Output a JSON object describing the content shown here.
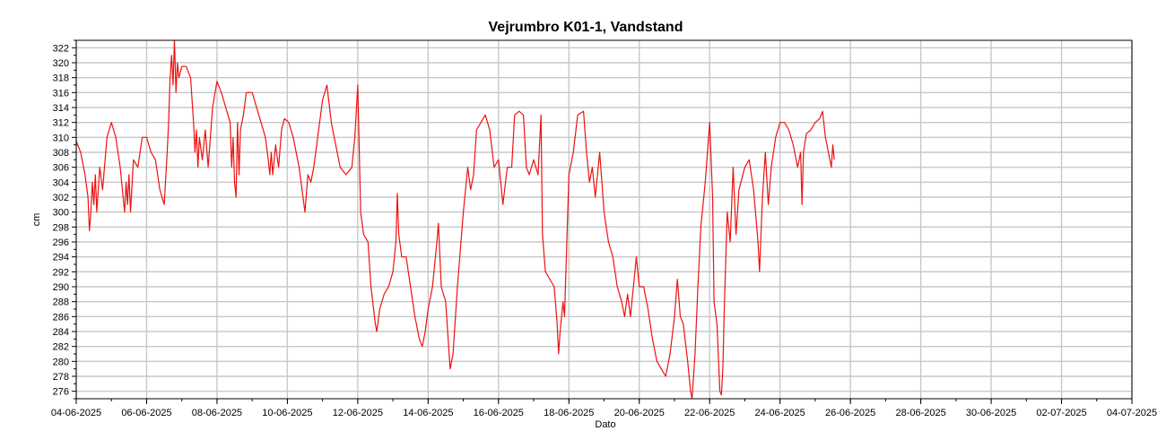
{
  "chart_data": {
    "type": "line",
    "title": "Vejrumbro K01-1, Vandstand",
    "xlabel": "Dato",
    "ylabel": "cm",
    "ylim": [
      275,
      323
    ],
    "xlim": [
      "2025-06-04",
      "2025-07-04"
    ],
    "grid": true,
    "x_ticks": [
      "04-06-2025",
      "06-06-2025",
      "08-06-2025",
      "10-06-2025",
      "12-06-2025",
      "14-06-2025",
      "16-06-2025",
      "18-06-2025",
      "20-06-2025",
      "22-06-2025",
      "24-06-2025",
      "26-06-2025",
      "28-06-2025",
      "30-06-2025",
      "02-07-2025",
      "04-07-2025"
    ],
    "y_ticks": [
      276,
      278,
      280,
      282,
      284,
      286,
      288,
      290,
      292,
      294,
      296,
      298,
      300,
      302,
      304,
      306,
      308,
      310,
      312,
      314,
      316,
      318,
      320,
      322
    ],
    "series": [
      {
        "color": "#ee1111",
        "points": [
          [
            "2025-06-04T00:00",
            309.5
          ],
          [
            "2025-06-04T03:00",
            308
          ],
          [
            "2025-06-04T06:00",
            305
          ],
          [
            "2025-06-04T08:00",
            302
          ],
          [
            "2025-06-04T09:00",
            297.5
          ],
          [
            "2025-06-04T10:00",
            300
          ],
          [
            "2025-06-04T11:00",
            304
          ],
          [
            "2025-06-04T12:00",
            301
          ],
          [
            "2025-06-04T13:00",
            305
          ],
          [
            "2025-06-04T14:00",
            300
          ],
          [
            "2025-06-04T16:00",
            306
          ],
          [
            "2025-06-04T18:00",
            303
          ],
          [
            "2025-06-04T21:00",
            310
          ],
          [
            "2025-06-05T00:00",
            312
          ],
          [
            "2025-06-05T03:00",
            310
          ],
          [
            "2025-06-05T06:00",
            306
          ],
          [
            "2025-06-05T08:00",
            302
          ],
          [
            "2025-06-05T09:00",
            300
          ],
          [
            "2025-06-05T10:00",
            304
          ],
          [
            "2025-06-05T11:00",
            301
          ],
          [
            "2025-06-05T12:00",
            305
          ],
          [
            "2025-06-05T13:00",
            300
          ],
          [
            "2025-06-05T15:00",
            307
          ],
          [
            "2025-06-05T18:00",
            306
          ],
          [
            "2025-06-05T21:00",
            310
          ],
          [
            "2025-06-06T00:00",
            310
          ],
          [
            "2025-06-06T03:00",
            308
          ],
          [
            "2025-06-06T06:00",
            307
          ],
          [
            "2025-06-06T09:00",
            303
          ],
          [
            "2025-06-06T12:00",
            301
          ],
          [
            "2025-06-06T14:00",
            308
          ],
          [
            "2025-06-06T15:00",
            312
          ],
          [
            "2025-06-06T16:00",
            318
          ],
          [
            "2025-06-06T17:00",
            321
          ],
          [
            "2025-06-06T18:00",
            317
          ],
          [
            "2025-06-06T19:00",
            323
          ],
          [
            "2025-06-06T20:00",
            316
          ],
          [
            "2025-06-06T21:00",
            320
          ],
          [
            "2025-06-06T22:00",
            318
          ],
          [
            "2025-06-07T00:00",
            319.5
          ],
          [
            "2025-06-07T03:00",
            319.5
          ],
          [
            "2025-06-07T06:00",
            318
          ],
          [
            "2025-06-07T08:00",
            312
          ],
          [
            "2025-06-07T09:00",
            308
          ],
          [
            "2025-06-07T10:00",
            311
          ],
          [
            "2025-06-07T11:00",
            306
          ],
          [
            "2025-06-07T12:00",
            310
          ],
          [
            "2025-06-07T14:00",
            307
          ],
          [
            "2025-06-07T16:00",
            311
          ],
          [
            "2025-06-07T18:00",
            306
          ],
          [
            "2025-06-07T21:00",
            314
          ],
          [
            "2025-06-08T00:00",
            317.5
          ],
          [
            "2025-06-08T03:00",
            316
          ],
          [
            "2025-06-08T06:00",
            314
          ],
          [
            "2025-06-08T09:00",
            312
          ],
          [
            "2025-06-08T10:00",
            306
          ],
          [
            "2025-06-08T11:00",
            310
          ],
          [
            "2025-06-08T12:00",
            304
          ],
          [
            "2025-06-08T13:00",
            302
          ],
          [
            "2025-06-08T14:00",
            312
          ],
          [
            "2025-06-08T15:00",
            305
          ],
          [
            "2025-06-08T16:00",
            311
          ],
          [
            "2025-06-08T18:00",
            313
          ],
          [
            "2025-06-08T20:00",
            316
          ],
          [
            "2025-06-09T00:00",
            316
          ],
          [
            "2025-06-09T03:00",
            314
          ],
          [
            "2025-06-09T06:00",
            312
          ],
          [
            "2025-06-09T09:00",
            310
          ],
          [
            "2025-06-09T11:00",
            307
          ],
          [
            "2025-06-09T12:00",
            305
          ],
          [
            "2025-06-09T13:00",
            308
          ],
          [
            "2025-06-09T14:00",
            305
          ],
          [
            "2025-06-09T16:00",
            309
          ],
          [
            "2025-06-09T18:00",
            306
          ],
          [
            "2025-06-09T20:00",
            311
          ],
          [
            "2025-06-09T22:00",
            312.5
          ],
          [
            "2025-06-10T01:00",
            312
          ],
          [
            "2025-06-10T04:00",
            310
          ],
          [
            "2025-06-10T08:00",
            306
          ],
          [
            "2025-06-10T12:00",
            300
          ],
          [
            "2025-06-10T14:00",
            305
          ],
          [
            "2025-06-10T16:00",
            304
          ],
          [
            "2025-06-10T18:00",
            306
          ],
          [
            "2025-06-10T20:00",
            309
          ],
          [
            "2025-06-11T00:00",
            315
          ],
          [
            "2025-06-11T03:00",
            317
          ],
          [
            "2025-06-11T06:00",
            312
          ],
          [
            "2025-06-11T09:00",
            309
          ],
          [
            "2025-06-11T12:00",
            306
          ],
          [
            "2025-06-11T16:00",
            305
          ],
          [
            "2025-06-11T20:00",
            306
          ],
          [
            "2025-06-11T22:00",
            310
          ],
          [
            "2025-06-12T00:00",
            317
          ],
          [
            "2025-06-12T02:00",
            300
          ],
          [
            "2025-06-12T04:00",
            297
          ],
          [
            "2025-06-12T07:00",
            296
          ],
          [
            "2025-06-12T09:00",
            290
          ],
          [
            "2025-06-12T12:00",
            285
          ],
          [
            "2025-06-12T13:00",
            284
          ],
          [
            "2025-06-12T15:00",
            287
          ],
          [
            "2025-06-12T18:00",
            289
          ],
          [
            "2025-06-12T21:00",
            290
          ],
          [
            "2025-06-13T00:00",
            292
          ],
          [
            "2025-06-13T02:00",
            296
          ],
          [
            "2025-06-13T03:00",
            302.5
          ],
          [
            "2025-06-13T04:00",
            297
          ],
          [
            "2025-06-13T06:00",
            294
          ],
          [
            "2025-06-13T09:00",
            294
          ],
          [
            "2025-06-13T12:00",
            290
          ],
          [
            "2025-06-13T15:00",
            286
          ],
          [
            "2025-06-13T18:00",
            283
          ],
          [
            "2025-06-13T20:00",
            282
          ],
          [
            "2025-06-13T22:00",
            284
          ],
          [
            "2025-06-14T00:00",
            287
          ],
          [
            "2025-06-14T03:00",
            290
          ],
          [
            "2025-06-14T06:00",
            296
          ],
          [
            "2025-06-14T07:00",
            298.5
          ],
          [
            "2025-06-14T09:00",
            290
          ],
          [
            "2025-06-14T12:00",
            288
          ],
          [
            "2025-06-14T14:00",
            282
          ],
          [
            "2025-06-14T15:00",
            279
          ],
          [
            "2025-06-14T17:00",
            281
          ],
          [
            "2025-06-14T20:00",
            290
          ],
          [
            "2025-06-15T00:00",
            300
          ],
          [
            "2025-06-15T03:00",
            306
          ],
          [
            "2025-06-15T05:00",
            303
          ],
          [
            "2025-06-15T07:00",
            305
          ],
          [
            "2025-06-15T09:00",
            311
          ],
          [
            "2025-06-15T12:00",
            312
          ],
          [
            "2025-06-15T15:00",
            313
          ],
          [
            "2025-06-15T18:00",
            311
          ],
          [
            "2025-06-15T21:00",
            306
          ],
          [
            "2025-06-16T00:00",
            307
          ],
          [
            "2025-06-16T03:00",
            301
          ],
          [
            "2025-06-16T06:00",
            306
          ],
          [
            "2025-06-16T09:00",
            306
          ],
          [
            "2025-06-16T11:00",
            313
          ],
          [
            "2025-06-16T14:00",
            313.5
          ],
          [
            "2025-06-16T17:00",
            313
          ],
          [
            "2025-06-16T19:00",
            306
          ],
          [
            "2025-06-16T21:00",
            305
          ],
          [
            "2025-06-17T00:00",
            307
          ],
          [
            "2025-06-17T03:00",
            305
          ],
          [
            "2025-06-17T05:00",
            313
          ],
          [
            "2025-06-17T06:00",
            297
          ],
          [
            "2025-06-17T08:00",
            292
          ],
          [
            "2025-06-17T11:00",
            291
          ],
          [
            "2025-06-17T14:00",
            290
          ],
          [
            "2025-06-17T16:00",
            285
          ],
          [
            "2025-06-17T17:00",
            281
          ],
          [
            "2025-06-17T18:00",
            284
          ],
          [
            "2025-06-17T20:00",
            288
          ],
          [
            "2025-06-17T21:00",
            286
          ],
          [
            "2025-06-18T00:00",
            305
          ],
          [
            "2025-06-18T03:00",
            308
          ],
          [
            "2025-06-18T06:00",
            313
          ],
          [
            "2025-06-18T10:00",
            313.5
          ],
          [
            "2025-06-18T12:00",
            308
          ],
          [
            "2025-06-18T14:00",
            304
          ],
          [
            "2025-06-18T16:00",
            306
          ],
          [
            "2025-06-18T18:00",
            302
          ],
          [
            "2025-06-18T21:00",
            308
          ],
          [
            "2025-06-19T00:00",
            300
          ],
          [
            "2025-06-19T03:00",
            296
          ],
          [
            "2025-06-19T06:00",
            294
          ],
          [
            "2025-06-19T09:00",
            290
          ],
          [
            "2025-06-19T12:00",
            288
          ],
          [
            "2025-06-19T14:00",
            286
          ],
          [
            "2025-06-19T16:00",
            289
          ],
          [
            "2025-06-19T18:00",
            286
          ],
          [
            "2025-06-19T20:00",
            290
          ],
          [
            "2025-06-19T22:00",
            294
          ],
          [
            "2025-06-20T00:00",
            290
          ],
          [
            "2025-06-20T03:00",
            290
          ],
          [
            "2025-06-20T06:00",
            287
          ],
          [
            "2025-06-20T09:00",
            283
          ],
          [
            "2025-06-20T12:00",
            280
          ],
          [
            "2025-06-20T15:00",
            279
          ],
          [
            "2025-06-20T18:00",
            278
          ],
          [
            "2025-06-20T21:00",
            281
          ],
          [
            "2025-06-21T00:00",
            286
          ],
          [
            "2025-06-21T02:00",
            291
          ],
          [
            "2025-06-21T04:00",
            286
          ],
          [
            "2025-06-21T06:00",
            285
          ],
          [
            "2025-06-21T09:00",
            280
          ],
          [
            "2025-06-21T11:00",
            276
          ],
          [
            "2025-06-21T12:00",
            275
          ],
          [
            "2025-06-21T14:00",
            281
          ],
          [
            "2025-06-21T16:00",
            290
          ],
          [
            "2025-06-21T18:00",
            298
          ],
          [
            "2025-06-21T21:00",
            304
          ],
          [
            "2025-06-22T00:00",
            312
          ],
          [
            "2025-06-22T02:00",
            302
          ],
          [
            "2025-06-22T03:00",
            288
          ],
          [
            "2025-06-22T05:00",
            285
          ],
          [
            "2025-06-22T07:00",
            276
          ],
          [
            "2025-06-22T08:00",
            275.5
          ],
          [
            "2025-06-22T09:00",
            279
          ],
          [
            "2025-06-22T10:00",
            287
          ],
          [
            "2025-06-22T12:00",
            300
          ],
          [
            "2025-06-22T14:00",
            296
          ],
          [
            "2025-06-22T16:00",
            306
          ],
          [
            "2025-06-22T18:00",
            297
          ],
          [
            "2025-06-22T20:00",
            303
          ],
          [
            "2025-06-23T00:00",
            306
          ],
          [
            "2025-06-23T03:00",
            307
          ],
          [
            "2025-06-23T06:00",
            303
          ],
          [
            "2025-06-23T09:00",
            296
          ],
          [
            "2025-06-23T10:00",
            292
          ],
          [
            "2025-06-23T12:00",
            302
          ],
          [
            "2025-06-23T14:00",
            308
          ],
          [
            "2025-06-23T16:00",
            301
          ],
          [
            "2025-06-23T18:00",
            306
          ],
          [
            "2025-06-23T21:00",
            310
          ],
          [
            "2025-06-24T00:00",
            312
          ],
          [
            "2025-06-24T03:00",
            312
          ],
          [
            "2025-06-24T06:00",
            311
          ],
          [
            "2025-06-24T09:00",
            309
          ],
          [
            "2025-06-24T12:00",
            306
          ],
          [
            "2025-06-24T14:00",
            308
          ],
          [
            "2025-06-24T15:00",
            301
          ],
          [
            "2025-06-24T16:00",
            308
          ],
          [
            "2025-06-24T18:00",
            310.5
          ],
          [
            "2025-06-24T21:00",
            311
          ],
          [
            "2025-06-25T00:00",
            312
          ],
          [
            "2025-06-25T03:00",
            312.5
          ],
          [
            "2025-06-25T05:00",
            313.5
          ],
          [
            "2025-06-25T07:00",
            310
          ],
          [
            "2025-06-25T09:00",
            308
          ],
          [
            "2025-06-25T11:00",
            306
          ],
          [
            "2025-06-25T12:00",
            309
          ],
          [
            "2025-06-25T13:00",
            307
          ]
        ]
      }
    ]
  }
}
